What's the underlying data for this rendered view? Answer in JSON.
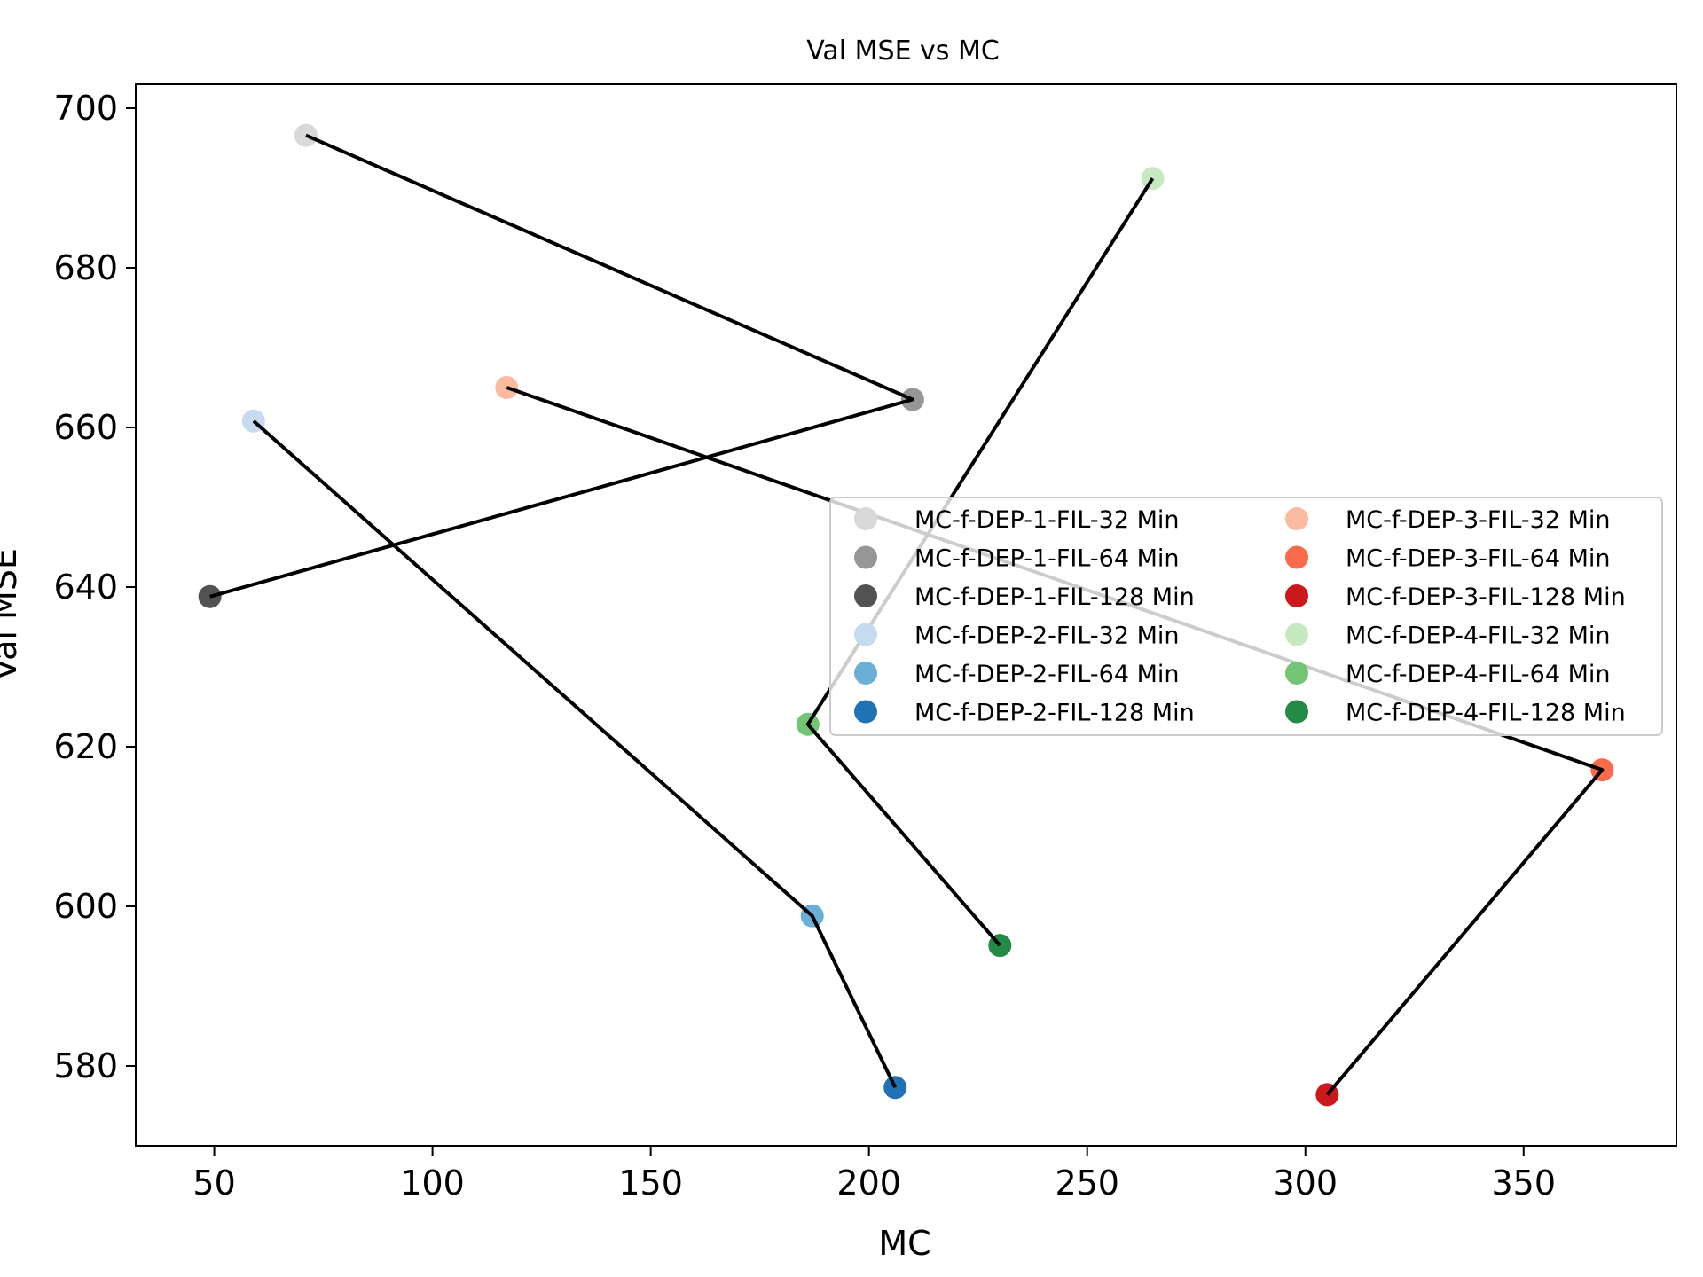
{
  "chart_data": {
    "type": "scatter",
    "title": "Val MSE vs MC",
    "xlabel": "MC",
    "ylabel": "Val MSE",
    "xlim": [
      32,
      385
    ],
    "ylim": [
      570,
      703
    ],
    "xticks": [
      50,
      100,
      150,
      200,
      250,
      300,
      350
    ],
    "yticks": [
      580,
      600,
      620,
      640,
      660,
      680,
      700
    ],
    "grid": false,
    "legend_position": "center-right",
    "legend_columns": 2,
    "series": [
      {
        "name": "MC-f-DEP-1-FIL-32 Min",
        "color": "#d9d9d9",
        "x": 71,
        "y": 696.6
      },
      {
        "name": "MC-f-DEP-1-FIL-64 Min",
        "color": "#969696",
        "x": 210,
        "y": 663.5
      },
      {
        "name": "MC-f-DEP-1-FIL-128 Min",
        "color": "#525252",
        "x": 49,
        "y": 638.8
      },
      {
        "name": "MC-f-DEP-2-FIL-32 Min",
        "color": "#c6dbef",
        "x": 59,
        "y": 660.8
      },
      {
        "name": "MC-f-DEP-2-FIL-64 Min",
        "color": "#6baed6",
        "x": 187,
        "y": 598.8
      },
      {
        "name": "MC-f-DEP-2-FIL-128 Min",
        "color": "#2171b5",
        "x": 206,
        "y": 577.3
      },
      {
        "name": "MC-f-DEP-3-FIL-32 Min",
        "color": "#fcbba1",
        "x": 117,
        "y": 665.0
      },
      {
        "name": "MC-f-DEP-3-FIL-64 Min",
        "color": "#fb6a4a",
        "x": 368,
        "y": 617.1
      },
      {
        "name": "MC-f-DEP-3-FIL-128 Min",
        "color": "#cb181d",
        "x": 305,
        "y": 576.4
      },
      {
        "name": "MC-f-DEP-4-FIL-32 Min",
        "color": "#c7e9c0",
        "x": 265,
        "y": 691.2
      },
      {
        "name": "MC-f-DEP-4-FIL-64 Min",
        "color": "#74c476",
        "x": 186,
        "y": 622.8
      },
      {
        "name": "MC-f-DEP-4-FIL-128 Min",
        "color": "#238b45",
        "x": 230,
        "y": 595.1
      }
    ],
    "lines": [
      {
        "points": [
          [
            71,
            696.6
          ],
          [
            210,
            663.5
          ],
          [
            49,
            638.8
          ]
        ]
      },
      {
        "points": [
          [
            59,
            660.8
          ],
          [
            187,
            598.8
          ],
          [
            206,
            577.3
          ]
        ]
      },
      {
        "points": [
          [
            117,
            665.0
          ],
          [
            368,
            617.1
          ],
          [
            305,
            576.4
          ]
        ]
      },
      {
        "points": [
          [
            265,
            691.2
          ],
          [
            186,
            622.8
          ],
          [
            230,
            595.1
          ]
        ]
      }
    ],
    "line_color": "#000000"
  }
}
